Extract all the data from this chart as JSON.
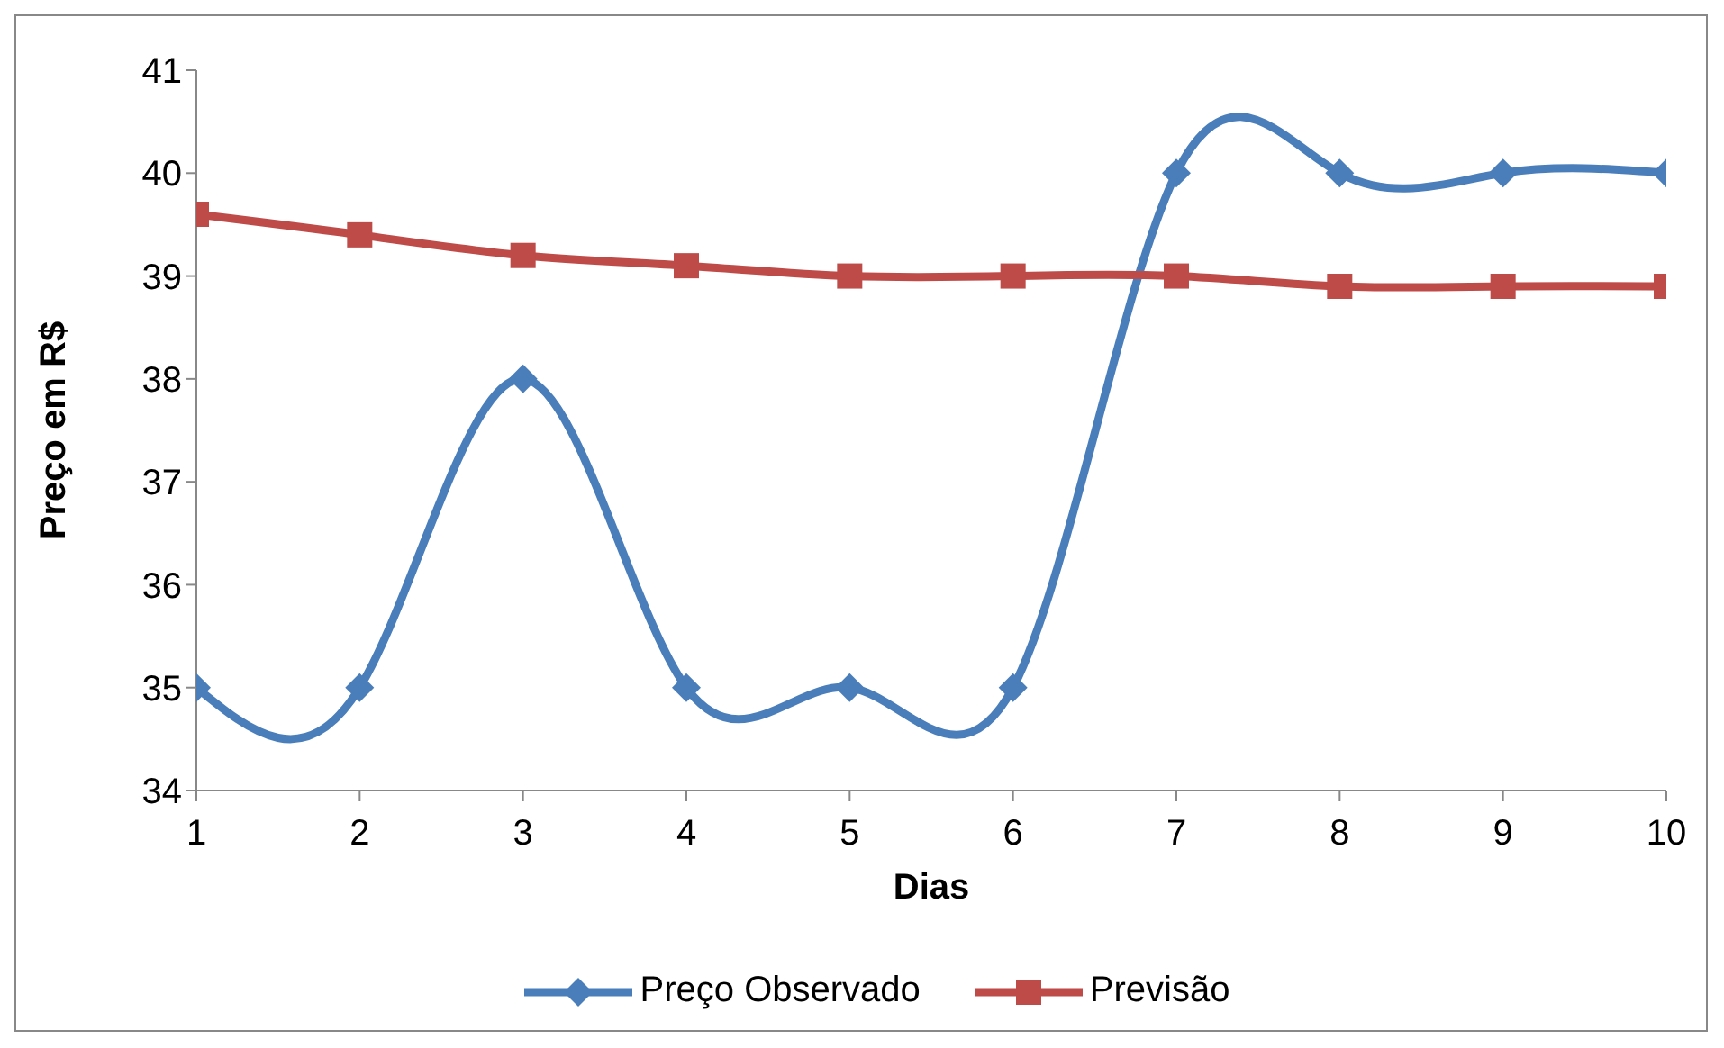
{
  "chart_data": {
    "type": "line",
    "xlabel": "Dias",
    "ylabel": "Preço em R$",
    "x": [
      1,
      2,
      3,
      4,
      5,
      6,
      7,
      8,
      9,
      10
    ],
    "xlim": [
      1,
      10
    ],
    "xticks": [
      1,
      2,
      3,
      4,
      5,
      6,
      7,
      8,
      9,
      10
    ],
    "ylim": [
      34,
      41
    ],
    "yticks": [
      34,
      35,
      36,
      37,
      38,
      39,
      40,
      41
    ],
    "series": [
      {
        "name": "Preço Observado",
        "color": "#4a7ebb",
        "marker": "diamond",
        "values": [
          35,
          35,
          38,
          35,
          35,
          35,
          40,
          40,
          40,
          40
        ]
      },
      {
        "name": "Previsão",
        "color": "#be4b48",
        "marker": "square",
        "values": [
          39.6,
          39.4,
          39.2,
          39.1,
          39.0,
          39.0,
          39.0,
          38.9,
          38.9,
          38.9
        ]
      }
    ],
    "grid": false,
    "legend": "bottom"
  }
}
